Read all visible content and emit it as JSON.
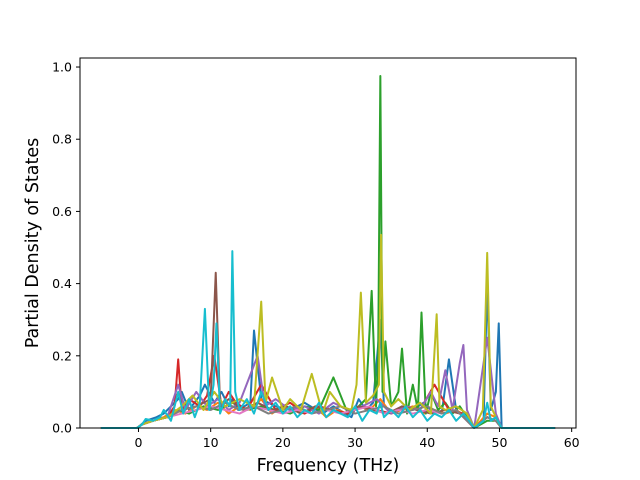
{
  "chart_data": {
    "type": "line",
    "title": "",
    "xlabel": "Frequency (THz)",
    "ylabel": "Partial Density of States",
    "xlim": [
      -8.1,
      60.6
    ],
    "ylim": [
      0.0,
      1.025
    ],
    "xticks": [
      0,
      10,
      20,
      30,
      40,
      50,
      60
    ],
    "yticks": [
      0.0,
      0.2,
      0.4,
      0.6,
      0.8,
      1.0
    ],
    "ytick_labels": [
      "0.0",
      "0.2",
      "0.4",
      "0.6",
      "0.8",
      "1.0"
    ],
    "grid": false,
    "legend": "none",
    "series": [
      {
        "color": "#1f77b4",
        "x": [
          -5.2,
          -0.2,
          0.4,
          1.0,
          2.5,
          3.5,
          5.5,
          6.0,
          7.0,
          8.5,
          9.2,
          10.5,
          11.5,
          12.5,
          13.0,
          13.8,
          15.5,
          16.0,
          17.0,
          19.0,
          21.0,
          23.0,
          25.5,
          27.0,
          29.5,
          30.5,
          31.5,
          32.5,
          33.5,
          34.0,
          35.0,
          36.5,
          38.0,
          39.5,
          40.5,
          42.0,
          43.0,
          44.0,
          45.5,
          46.5,
          47.8,
          48.3,
          48.8,
          49.5,
          49.9,
          50.3,
          57.7
        ],
        "y": [
          0.0,
          0.0,
          0.01,
          0.02,
          0.03,
          0.04,
          0.08,
          0.1,
          0.05,
          0.09,
          0.12,
          0.07,
          0.1,
          0.06,
          0.08,
          0.05,
          0.07,
          0.27,
          0.08,
          0.06,
          0.05,
          0.07,
          0.04,
          0.06,
          0.03,
          0.08,
          0.05,
          0.07,
          0.3,
          0.06,
          0.04,
          0.06,
          0.05,
          0.07,
          0.05,
          0.04,
          0.19,
          0.05,
          0.03,
          0.0,
          0.02,
          0.4,
          0.05,
          0.1,
          0.29,
          0.0,
          0.0
        ]
      },
      {
        "color": "#ff7f0e",
        "x": [
          -5.2,
          -0.2,
          0.5,
          2.0,
          3.5,
          5.0,
          6.5,
          8.0,
          9.5,
          11.0,
          12.5,
          14.0,
          15.5,
          17.0,
          18.5,
          20.0,
          21.5,
          23.0,
          24.5,
          26.0,
          27.5,
          29.0,
          30.5,
          32.0,
          33.5,
          35.0,
          36.5,
          38.0,
          39.5,
          41.0,
          42.5,
          44.0,
          45.5,
          46.5,
          48.3,
          49.5,
          50.3,
          57.7
        ],
        "y": [
          0.0,
          0.0,
          0.01,
          0.02,
          0.03,
          0.05,
          0.04,
          0.06,
          0.05,
          0.07,
          0.04,
          0.06,
          0.05,
          0.08,
          0.04,
          0.06,
          0.05,
          0.04,
          0.06,
          0.03,
          0.05,
          0.04,
          0.06,
          0.05,
          0.08,
          0.04,
          0.05,
          0.06,
          0.04,
          0.05,
          0.04,
          0.05,
          0.03,
          0.0,
          0.04,
          0.03,
          0.0,
          0.0
        ]
      },
      {
        "color": "#2ca02c",
        "x": [
          -5.2,
          -0.2,
          0.5,
          2.0,
          4.0,
          5.5,
          7.0,
          9.0,
          11.0,
          13.0,
          15.0,
          17.0,
          19.0,
          21.0,
          23.0,
          25.0,
          27.0,
          29.0,
          30.5,
          31.5,
          32.3,
          32.9,
          33.2,
          33.5,
          33.8,
          34.2,
          35.0,
          36.0,
          36.5,
          37.2,
          38.0,
          38.7,
          39.2,
          39.8,
          40.5,
          41.5,
          42.5,
          43.5,
          44.5,
          45.5,
          46.5,
          48.3,
          49.5,
          50.3,
          57.7
        ],
        "y": [
          0.0,
          0.0,
          0.01,
          0.02,
          0.03,
          0.05,
          0.04,
          0.06,
          0.05,
          0.07,
          0.05,
          0.06,
          0.05,
          0.04,
          0.06,
          0.05,
          0.14,
          0.04,
          0.06,
          0.08,
          0.38,
          0.06,
          0.2,
          0.975,
          0.1,
          0.24,
          0.06,
          0.1,
          0.22,
          0.04,
          0.12,
          0.05,
          0.32,
          0.04,
          0.1,
          0.05,
          0.07,
          0.04,
          0.06,
          0.03,
          0.0,
          0.02,
          0.02,
          0.0,
          0.0
        ]
      },
      {
        "color": "#d62728",
        "x": [
          -5.2,
          -0.2,
          0.5,
          2.0,
          4.0,
          5.0,
          5.5,
          6.0,
          7.0,
          8.5,
          9.5,
          10.5,
          11.5,
          12.5,
          13.5,
          15.0,
          17.0,
          19.0,
          21.0,
          23.0,
          25.0,
          27.0,
          29.0,
          31.0,
          33.0,
          35.0,
          37.0,
          39.0,
          41.0,
          43.0,
          45.0,
          46.5,
          48.3,
          49.5,
          50.3,
          57.7
        ],
        "y": [
          0.0,
          0.0,
          0.01,
          0.02,
          0.03,
          0.06,
          0.19,
          0.05,
          0.08,
          0.06,
          0.09,
          0.2,
          0.06,
          0.1,
          0.07,
          0.05,
          0.12,
          0.05,
          0.07,
          0.04,
          0.06,
          0.05,
          0.04,
          0.06,
          0.05,
          0.04,
          0.06,
          0.05,
          0.12,
          0.05,
          0.04,
          0.0,
          0.03,
          0.02,
          0.0,
          0.0
        ]
      },
      {
        "color": "#9467bd",
        "x": [
          -5.2,
          -0.2,
          0.5,
          2.0,
          4.0,
          5.5,
          6.5,
          8.0,
          9.5,
          11.0,
          12.5,
          14.0,
          16.5,
          17.5,
          19.0,
          21.0,
          23.0,
          25.0,
          27.0,
          29.0,
          31.0,
          33.0,
          35.0,
          37.0,
          39.0,
          40.5,
          41.5,
          42.5,
          43.5,
          44.5,
          45.0,
          45.5,
          46.5,
          48.3,
          49.5,
          50.3,
          57.7
        ],
        "y": [
          0.0,
          0.0,
          0.01,
          0.02,
          0.03,
          0.12,
          0.05,
          0.1,
          0.06,
          0.08,
          0.05,
          0.07,
          0.2,
          0.06,
          0.08,
          0.05,
          0.06,
          0.04,
          0.07,
          0.05,
          0.06,
          0.08,
          0.04,
          0.06,
          0.05,
          0.1,
          0.06,
          0.16,
          0.05,
          0.18,
          0.23,
          0.05,
          0.0,
          0.25,
          0.04,
          0.0,
          0.0
        ]
      },
      {
        "color": "#8c564b",
        "x": [
          -5.2,
          -0.2,
          0.5,
          2.0,
          4.0,
          6.0,
          8.0,
          10.0,
          10.7,
          11.3,
          12.5,
          14.5,
          16.5,
          18.5,
          20.5,
          22.5,
          24.5,
          26.5,
          28.5,
          30.5,
          32.5,
          34.5,
          36.5,
          38.5,
          40.5,
          42.5,
          44.5,
          46.5,
          48.3,
          49.5,
          50.3,
          57.7
        ],
        "y": [
          0.0,
          0.0,
          0.01,
          0.02,
          0.03,
          0.05,
          0.06,
          0.08,
          0.43,
          0.06,
          0.08,
          0.05,
          0.07,
          0.05,
          0.06,
          0.04,
          0.06,
          0.05,
          0.04,
          0.06,
          0.05,
          0.04,
          0.06,
          0.05,
          0.04,
          0.05,
          0.04,
          0.0,
          0.03,
          0.02,
          0.0,
          0.0
        ]
      },
      {
        "color": "#e377c2",
        "x": [
          -5.2,
          -0.2,
          0.5,
          2.0,
          4.0,
          6.0,
          8.0,
          10.0,
          12.0,
          14.0,
          16.0,
          18.0,
          20.0,
          22.0,
          24.0,
          26.0,
          28.0,
          30.0,
          32.0,
          34.0,
          36.0,
          38.0,
          40.0,
          42.0,
          44.0,
          46.5,
          48.3,
          49.5,
          50.3,
          57.7
        ],
        "y": [
          0.0,
          0.0,
          0.01,
          0.02,
          0.03,
          0.04,
          0.05,
          0.06,
          0.05,
          0.04,
          0.06,
          0.05,
          0.04,
          0.05,
          0.04,
          0.05,
          0.04,
          0.05,
          0.06,
          0.04,
          0.05,
          0.04,
          0.05,
          0.04,
          0.05,
          0.0,
          0.03,
          0.02,
          0.0,
          0.0
        ]
      },
      {
        "color": "#7f7f7f",
        "x": [
          -5.2,
          -0.2,
          0.5,
          2.0,
          4.0,
          6.0,
          8.0,
          10.0,
          12.0,
          14.0,
          16.0,
          18.0,
          20.0,
          22.0,
          24.0,
          26.0,
          28.0,
          30.0,
          32.0,
          34.0,
          36.0,
          38.0,
          40.0,
          42.0,
          44.0,
          46.5,
          48.3,
          49.5,
          50.3,
          57.7
        ],
        "y": [
          0.0,
          0.0,
          0.01,
          0.02,
          0.03,
          0.05,
          0.06,
          0.05,
          0.07,
          0.05,
          0.06,
          0.04,
          0.05,
          0.06,
          0.04,
          0.05,
          0.06,
          0.04,
          0.05,
          0.06,
          0.04,
          0.05,
          0.06,
          0.04,
          0.05,
          0.0,
          0.03,
          0.02,
          0.0,
          0.0
        ]
      },
      {
        "color": "#bcbd22",
        "x": [
          -5.2,
          -0.2,
          0.5,
          2.0,
          4.0,
          6.0,
          7.5,
          9.0,
          10.5,
          12.0,
          14.0,
          16.0,
          17.0,
          17.6,
          18.5,
          20.0,
          21.0,
          22.5,
          24.0,
          25.5,
          26.5,
          28.0,
          29.5,
          30.2,
          30.8,
          31.5,
          32.5,
          33.3,
          33.6,
          34.0,
          35.0,
          36.0,
          37.5,
          39.0,
          40.5,
          41.3,
          41.7,
          42.5,
          44.0,
          45.5,
          46.5,
          47.7,
          48.3,
          48.8,
          49.5,
          50.3,
          57.7
        ],
        "y": [
          0.0,
          0.0,
          0.01,
          0.02,
          0.03,
          0.06,
          0.09,
          0.05,
          0.1,
          0.06,
          0.08,
          0.06,
          0.35,
          0.07,
          0.14,
          0.05,
          0.08,
          0.05,
          0.15,
          0.04,
          0.1,
          0.06,
          0.05,
          0.12,
          0.375,
          0.07,
          0.09,
          0.12,
          0.535,
          0.1,
          0.06,
          0.08,
          0.05,
          0.07,
          0.04,
          0.315,
          0.06,
          0.05,
          0.06,
          0.04,
          0.0,
          0.05,
          0.485,
          0.06,
          0.03,
          0.0,
          0.0
        ]
      },
      {
        "color": "#17becf",
        "x": [
          -5.2,
          -0.2,
          0.5,
          1.0,
          2.0,
          3.0,
          3.5,
          4.5,
          5.5,
          6.2,
          7.0,
          7.8,
          8.5,
          9.2,
          9.8,
          10.4,
          10.8,
          11.3,
          12.0,
          12.7,
          13.0,
          13.4,
          14.0,
          15.0,
          16.0,
          17.0,
          18.0,
          19.0,
          20.0,
          21.0,
          22.0,
          23.0,
          24.0,
          25.0,
          26.0,
          27.0,
          28.0,
          29.0,
          30.0,
          31.0,
          32.0,
          33.0,
          33.5,
          34.0,
          35.0,
          36.0,
          37.0,
          38.0,
          39.0,
          40.0,
          41.0,
          42.0,
          43.0,
          44.0,
          45.0,
          45.8,
          46.5,
          47.8,
          48.3,
          48.8,
          49.5,
          50.3,
          57.7
        ],
        "y": [
          0.0,
          0.0,
          0.01,
          0.025,
          0.02,
          0.03,
          0.05,
          0.02,
          0.1,
          0.04,
          0.08,
          0.03,
          0.07,
          0.33,
          0.05,
          0.12,
          0.29,
          0.04,
          0.08,
          0.06,
          0.49,
          0.1,
          0.05,
          0.08,
          0.04,
          0.1,
          0.05,
          0.07,
          0.04,
          0.06,
          0.03,
          0.05,
          0.04,
          0.07,
          0.03,
          0.05,
          0.04,
          0.03,
          0.06,
          0.02,
          0.05,
          0.04,
          0.07,
          0.03,
          0.05,
          0.03,
          0.06,
          0.03,
          0.05,
          0.02,
          0.04,
          0.03,
          0.05,
          0.02,
          0.04,
          0.02,
          0.0,
          0.02,
          0.07,
          0.02,
          0.03,
          0.0,
          0.0
        ]
      }
    ]
  }
}
